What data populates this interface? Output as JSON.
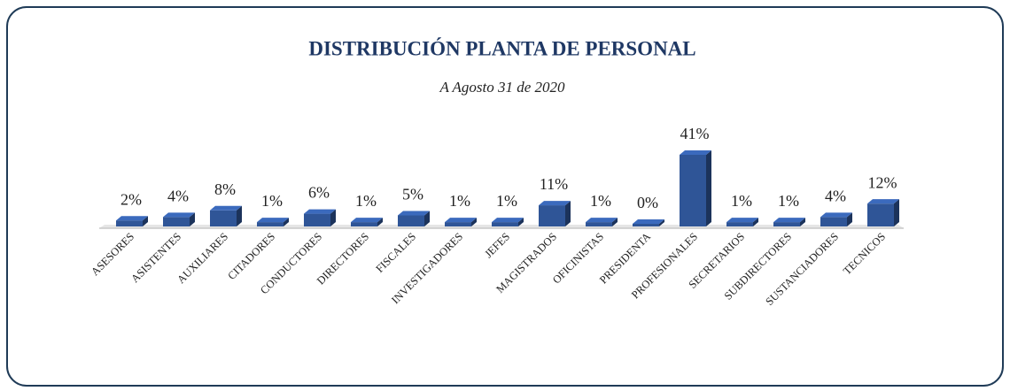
{
  "chart_data": {
    "type": "bar3d",
    "title": "DISTRIBUCIÓN PLANTA DE PERSONAL",
    "subtitle": "A Agosto 31 de 2020",
    "categories": [
      "ASESORES",
      "ASISTENTES",
      "AUXILIARES",
      "CITADORES",
      "CONDUCTORES",
      "DIRECTORES",
      "FISCALES",
      "INVESTIGADORES",
      "JEFES",
      "MAGISTRADOS",
      "OFICINISTAS",
      "PRESIDENTA",
      "PROFESIONALES",
      "SECRETARIOS",
      "SUBDIRECTORES",
      "SUSTANCIADORES",
      "TECNICOS"
    ],
    "values": [
      2,
      4,
      8,
      1,
      6,
      1,
      5,
      1,
      1,
      11,
      1,
      0,
      41,
      1,
      1,
      4,
      12
    ],
    "value_labels": [
      "2%",
      "4%",
      "8%",
      "1%",
      "6%",
      "1%",
      "5%",
      "1%",
      "1%",
      "11%",
      "1%",
      "0%",
      "41%",
      "1%",
      "1%",
      "4%",
      "12%"
    ],
    "color": "#2f5597"
  }
}
